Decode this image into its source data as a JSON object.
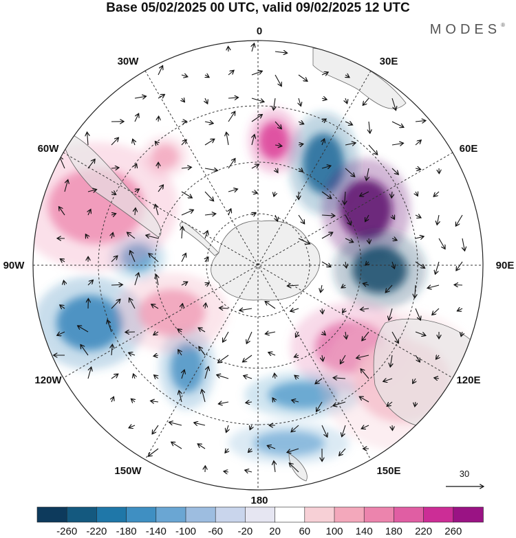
{
  "title": "Base 05/02/2025 00 UTC, valid 09/02/2025 12 UTC",
  "brand": "MODES",
  "brand_mark": "®",
  "map": {
    "projection": "south-polar-stereographic",
    "lon_labels": {
      "top": "0",
      "top_right": "30E",
      "upper_right": "60E",
      "right": "90E",
      "lower_right": "120E",
      "bottom_right": "150E",
      "bottom": "180",
      "bottom_left": "150W",
      "lower_left": "120W",
      "left": "90W",
      "upper_left": "60W",
      "top_left": "30W"
    },
    "anomalies": [
      {
        "value": 150,
        "color": "#db3f96"
      },
      {
        "value": -200,
        "color": "#1d6a99"
      },
      {
        "value": 260,
        "color": "#5d0f6c"
      },
      {
        "value": -250,
        "color": "#154b6b"
      },
      {
        "value": 120,
        "color": "#e57aaf"
      },
      {
        "value": -140,
        "color": "#5aa0cc"
      },
      {
        "value": 80,
        "color": "#f2a7bd"
      },
      {
        "value": -160,
        "color": "#3a86bc"
      },
      {
        "value": 100,
        "color": "#ef8fb4"
      },
      {
        "value": -150,
        "color": "#4a93c4"
      },
      {
        "value": -130,
        "color": "#5aa0cc"
      },
      {
        "value": 90,
        "color": "#f0a0b8"
      },
      {
        "value": -100,
        "color": "#7fb3d9"
      },
      {
        "value": 60,
        "color": "#f5c1cd"
      }
    ],
    "vector_reference": "30"
  },
  "colorbar": {
    "ticks": [
      "-260",
      "-220",
      "-180",
      "-140",
      "-100",
      "-60",
      "-20",
      "20",
      "60",
      "100",
      "140",
      "180",
      "220",
      "260"
    ],
    "colors": [
      "#0d3a5c",
      "#14597f",
      "#1f77a8",
      "#3f8fc2",
      "#6aa6d3",
      "#9dbde0",
      "#c9d5ec",
      "#e6e6f2",
      "#ffffff",
      "#f7d0d6",
      "#f3a8bb",
      "#ec84ad",
      "#e05ea3",
      "#cc2d96",
      "#9a1384",
      "#6b0a6e",
      "#4a0a5e"
    ]
  },
  "colors": {
    "land": "#e7e7e7",
    "coast": "#666666",
    "grid": "#333333"
  }
}
